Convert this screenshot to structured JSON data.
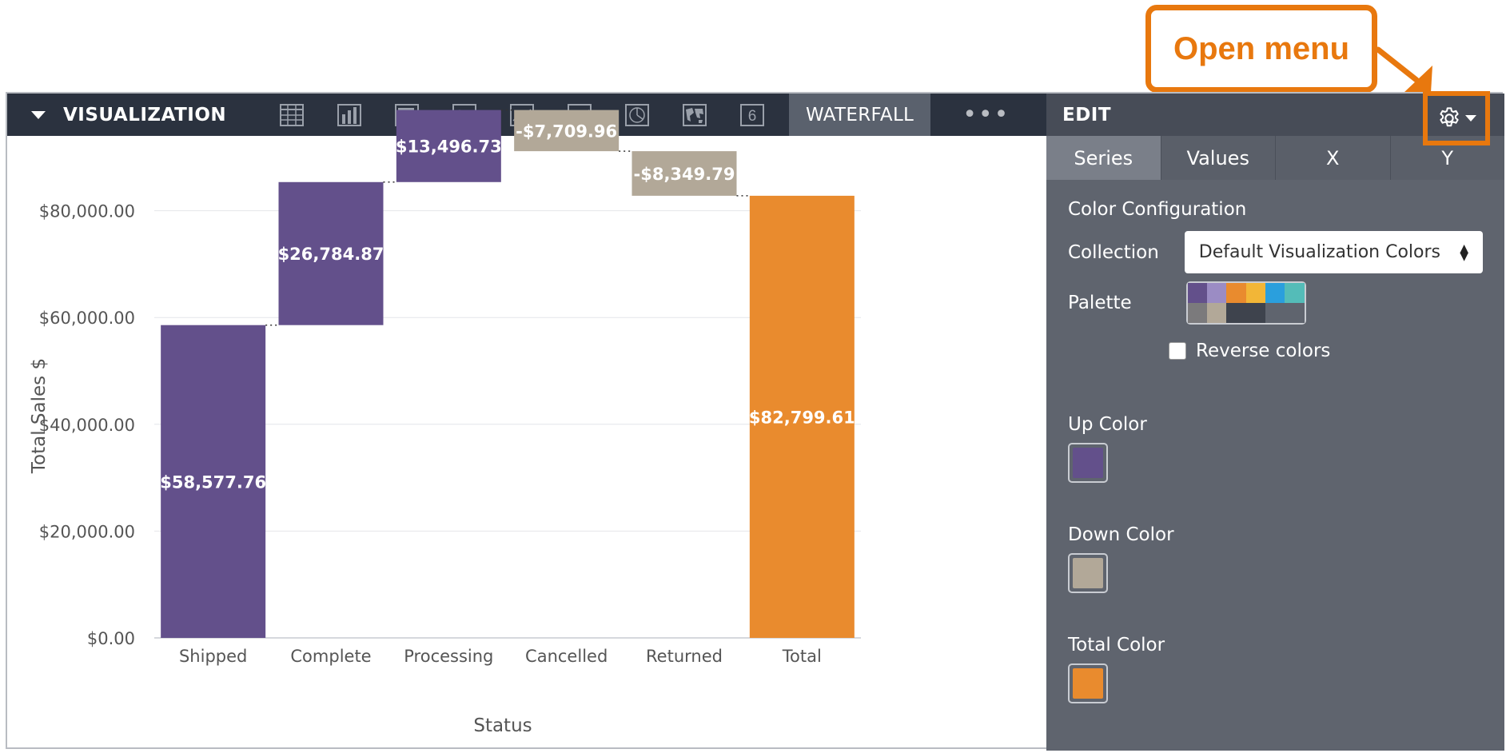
{
  "callout": {
    "text": "Open menu",
    "color": "#e8780e"
  },
  "toolbar": {
    "title": "VISUALIZATION",
    "icons": [
      "table-icon",
      "column-chart-icon",
      "bar-chart-icon",
      "scatter-chart-icon",
      "line-chart-icon",
      "area-chart-icon",
      "pie-chart-icon",
      "map-icon",
      "single-value-icon"
    ],
    "single_value_glyph": "6",
    "active_tab": "WATERFALL",
    "more_label": "•••"
  },
  "chart_data": {
    "type": "waterfall",
    "categories": [
      "Shipped",
      "Complete",
      "Processing",
      "Cancelled",
      "Returned",
      "Total"
    ],
    "values": [
      58577.76,
      26784.87,
      13496.73,
      -7709.96,
      -8349.79,
      82799.61
    ],
    "value_labels": [
      "$58,577.76",
      "$26,784.87",
      "$13,496.73",
      "-$7,709.96",
      "-$8,349.79",
      "$82,799.61"
    ],
    "xlabel": "Status",
    "ylabel": "Total Sales $",
    "ylim": [
      0,
      100000
    ],
    "yticks": [
      0,
      20000,
      40000,
      60000,
      80000
    ],
    "ytick_labels": [
      "$0.00",
      "$20,000.00",
      "$40,000.00",
      "$60,000.00",
      "$80,000.00"
    ],
    "grid": true,
    "colors": {
      "up": "#63508b",
      "down": "#b2a898",
      "total": "#e98b2e"
    }
  },
  "edit": {
    "title": "EDIT",
    "tabs": [
      "Series",
      "Values",
      "X",
      "Y"
    ],
    "active_tab": "Series",
    "section_title": "Color Configuration",
    "collection_label": "Collection",
    "collection_value": "Default Visualization Colors",
    "palette_label": "Palette",
    "palette_colors": [
      "#63508b",
      "#9b8cc4",
      "#e98b2e",
      "#f2b637",
      "#2a9fdd",
      "#54bcb8",
      "#7b7a7c",
      "#b2a898",
      "#3e434d",
      "#3e434d",
      "#5f646e",
      "#5f646e"
    ],
    "reverse_label": "Reverse colors",
    "reverse_checked": false,
    "up_color_label": "Up Color",
    "down_color_label": "Down Color",
    "total_color_label": "Total Color"
  }
}
